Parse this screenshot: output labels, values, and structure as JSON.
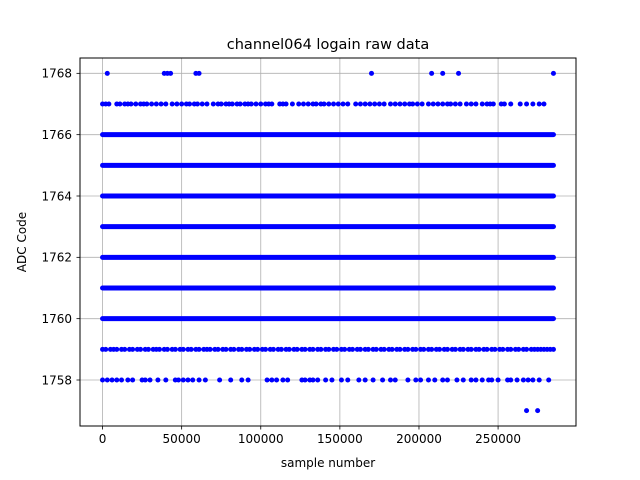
{
  "chart_data": {
    "type": "scatter",
    "title": "channel064 logain raw data",
    "xlabel": "sample number",
    "ylabel": "ADC Code",
    "xlim": [
      -14250,
      299250
    ],
    "ylim": [
      1756.5,
      1768.5
    ],
    "x_ticks": [
      0,
      50000,
      100000,
      150000,
      200000,
      250000
    ],
    "x_tick_labels": [
      "0",
      "50000",
      "100000",
      "150000",
      "200000",
      "250000"
    ],
    "y_ticks": [
      1758,
      1760,
      1762,
      1764,
      1766,
      1768
    ],
    "y_tick_labels": [
      "1758",
      "1760",
      "1762",
      "1764",
      "1766",
      "1768"
    ],
    "grid": true,
    "marker_color": "#0000ff",
    "dense_rows": [
      {
        "y": 1760,
        "x_range": [
          0,
          285000
        ]
      },
      {
        "y": 1761,
        "x_range": [
          0,
          285000
        ]
      },
      {
        "y": 1762,
        "x_range": [
          0,
          285000
        ]
      },
      {
        "y": 1763,
        "x_range": [
          0,
          285000
        ]
      },
      {
        "y": 1764,
        "x_range": [
          0,
          285000
        ]
      },
      {
        "y": 1765,
        "x_range": [
          0,
          285000
        ]
      },
      {
        "y": 1766,
        "x_range": [
          0,
          285000
        ]
      }
    ],
    "sparse_points": [
      {
        "y": 1768,
        "x": [
          3000,
          39000,
          41000,
          43000,
          59000,
          61000,
          170000,
          208000,
          215000,
          225000,
          285000
        ]
      },
      {
        "y": 1767,
        "x": [
          0,
          2000,
          4000,
          9000,
          11000,
          14000,
          16000,
          18000,
          21000,
          24000,
          26000,
          28000,
          31000,
          34000,
          37000,
          40000,
          44000,
          47000,
          50000,
          53000,
          55000,
          58000,
          60000,
          63000,
          66000,
          70000,
          73000,
          75000,
          78000,
          80000,
          82000,
          85000,
          87000,
          90000,
          92000,
          94000,
          97000,
          100000,
          103000,
          105000,
          107000,
          112000,
          114000,
          116000,
          120000,
          124000,
          127000,
          130000,
          133000,
          135000,
          138000,
          140000,
          143000,
          146000,
          149000,
          152000,
          155000,
          160000,
          163000,
          166000,
          169000,
          172000,
          175000,
          178000,
          182000,
          185000,
          188000,
          191000,
          194000,
          196000,
          199000,
          202000,
          206000,
          209000,
          212000,
          215000,
          218000,
          220000,
          223000,
          226000,
          230000,
          233000,
          236000,
          240000,
          243000,
          245000,
          247000,
          252000,
          254000,
          258000,
          264000,
          268000,
          272000,
          276000,
          279000
        ]
      },
      {
        "y": 1759,
        "x": [
          0,
          2000,
          5000,
          7000,
          9000,
          12000,
          14000,
          17000,
          19000,
          22000,
          24000,
          27000,
          29000,
          32000,
          34000,
          36000,
          39000,
          41000,
          44000,
          46000,
          49000,
          51000,
          54000,
          56000,
          59000,
          61000,
          64000,
          66000,
          68000,
          71000,
          73000,
          76000,
          78000,
          81000,
          83000,
          86000,
          88000,
          91000,
          93000,
          96000,
          98000,
          101000,
          103000,
          106000,
          108000,
          111000,
          113000,
          116000,
          118000,
          121000,
          123000,
          126000,
          128000,
          131000,
          133000,
          136000,
          138000,
          141000,
          143000,
          146000,
          148000,
          151000,
          153000,
          156000,
          158000,
          161000,
          163000,
          166000,
          168000,
          171000,
          173000,
          176000,
          178000,
          181000,
          183000,
          186000,
          188000,
          191000,
          193000,
          196000,
          198000,
          201000,
          203000,
          206000,
          208000,
          211000,
          213000,
          216000,
          218000,
          221000,
          223000,
          226000,
          228000,
          231000,
          233000,
          236000,
          238000,
          241000,
          243000,
          246000,
          248000,
          251000,
          253000,
          256000,
          258000,
          261000,
          263000,
          266000,
          268000,
          271000,
          273000,
          275000,
          277000,
          279000,
          281000,
          283000,
          285000
        ]
      },
      {
        "y": 1758,
        "x": [
          0,
          3000,
          6000,
          9000,
          12000,
          16000,
          19000,
          25000,
          27000,
          30000,
          35000,
          40000,
          46000,
          48000,
          51000,
          54000,
          57000,
          61000,
          65000,
          74000,
          81000,
          88000,
          92000,
          104000,
          107000,
          110000,
          114000,
          117000,
          126000,
          128000,
          131000,
          133000,
          136000,
          141000,
          145000,
          151000,
          155000,
          162000,
          166000,
          171000,
          177000,
          182000,
          185000,
          193000,
          198000,
          201000,
          206000,
          210000,
          215000,
          218000,
          224000,
          228000,
          233000,
          236000,
          240000,
          244000,
          246000,
          250000,
          256000,
          258000,
          262000,
          266000,
          269000,
          272000,
          276000,
          282000
        ]
      },
      {
        "y": 1757,
        "x": [
          268000,
          275000
        ]
      }
    ]
  }
}
